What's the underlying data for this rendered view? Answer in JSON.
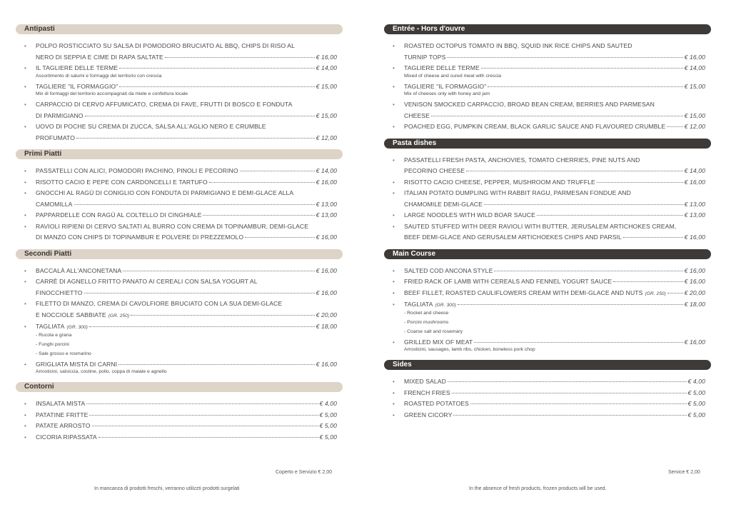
{
  "left": {
    "sections": [
      {
        "title": "Antipasti",
        "items": [
          {
            "lines": [
              "POLPO ROSTICCIATO SU SALSA DI POMODORO BRUCIATO AL BBQ, CHIPS DI RISO AL",
              "NERO DI SEPPIA E CIME DI RAPA SALTATE"
            ],
            "price": "€ 16,00"
          },
          {
            "lines": [
              "IL TAGLIERE DELLE TERME"
            ],
            "price": "€ 14,00",
            "desc": [
              "Assortimento di salumi e formaggi del territorio con crescia"
            ]
          },
          {
            "lines": [
              "TAGLIERE \"IL FORMAGGIO\""
            ],
            "price": "€ 15,00",
            "desc": [
              "Mix di formaggi del territorio accompagnati da miele e confettura locale"
            ]
          },
          {
            "lines": [
              "CARPACCIO DI CERVO AFFUMICATO, CREMA DI FAVE, FRUTTI DI BOSCO E FONDUTA",
              "DI PARMIGIANO"
            ],
            "price": "€ 15,00"
          },
          {
            "lines": [
              "UOVO DI POCHE SU CREMA DI ZUCCA, SALSA ALL'AGLIO NERO E CRUMBLE",
              "PROFUMATO"
            ],
            "price": "€ 12,00"
          }
        ]
      },
      {
        "title": "Primi Piatti",
        "items": [
          {
            "lines": [
              "PASSATELLI CON ALICI, POMODORI PACHINO, PINOLI E PECORINO"
            ],
            "price": "€ 14,00"
          },
          {
            "lines": [
              "RISOTTO CACIO E PEPE CON CARDONCELLI E TARTUFO"
            ],
            "price": "€ 16,00"
          },
          {
            "lines": [
              "GNOCCHI AL RAGÙ DI CONIGLIO CON FONDUTA DI PARMIGIANO E DEMI-GLACE ALLA",
              "CAMOMILLA"
            ],
            "price": "€ 13,00"
          },
          {
            "lines": [
              "PAPPARDELLE CON RAGÙ AL COLTELLO DI CINGHIALE"
            ],
            "price": "€ 13,00"
          },
          {
            "lines": [
              "RAVIOLI RIPIENI DI CERVO SALTATI AL BURRO CON CREMA DI TOPINAMBUR, DEMI-GLACE",
              "DI MANZO CON CHIPS DI TOPINAMBUR E POLVERE DI PREZZEMOLO"
            ],
            "price": "€ 16,00"
          }
        ]
      },
      {
        "title": "Secondi Piatti",
        "items": [
          {
            "lines": [
              "BACCALÀ ALL'ANCONETANA"
            ],
            "price": "€ 16,00"
          },
          {
            "lines": [
              "CARRÈ DI AGNELLO FRITTO PANATO AI CEREALI CON SALSA YOGURT AL",
              "FINOCCHIETTO"
            ],
            "price": "€ 16,00"
          },
          {
            "lines": [
              "FILETTO DI MANZO, CREMA DI CAVOLFIORE BRUCIATO CON LA SUA DEMI-GLACE",
              "E NOCCIOLE SABBIATE"
            ],
            "note": "(GR. 250)",
            "price": "€ 20,00"
          },
          {
            "lines": [
              "TAGLIATA"
            ],
            "note": "(GR. 300)",
            "price": "€ 18,00",
            "desc": [
              "- Rucola e grana",
              "- Funghi porcini",
              "- Sale grosso e rosmarino"
            ]
          },
          {
            "lines": [
              "GRIGLIATA MISTA DI CARNI"
            ],
            "price": "€ 16,00",
            "desc": [
              "Arrosticini, salsiccia, costine, pollo, coppa di maiale e agnello"
            ]
          }
        ]
      },
      {
        "title": "Contorni",
        "items": [
          {
            "lines": [
              "INSALATA MISTA"
            ],
            "price": "€ 4,00"
          },
          {
            "lines": [
              "PATATINE FRITTE"
            ],
            "price": "€ 5,00"
          },
          {
            "lines": [
              "PATATE ARROSTO"
            ],
            "price": "€ 5,00"
          },
          {
            "lines": [
              "CICORIA RIPASSATA"
            ],
            "price": "€ 5,00"
          }
        ]
      }
    ],
    "service": "Coperto e Servizio € 2,00",
    "notice": "In mancanza di prodotti freschi, verranno utilizzti prodotti surgelati"
  },
  "right": {
    "sections": [
      {
        "title": "Entrée - Hors d'ouvre",
        "items": [
          {
            "lines": [
              "ROASTED OCTOPUS TOMATO IN BBQ, SQUID INK RICE CHIPS AND SAUTED",
              "TURNIP TOPS"
            ],
            "price": "€ 16,00"
          },
          {
            "lines": [
              "TAGLIERE DELLE TERME"
            ],
            "price": "€ 14,00",
            "desc": [
              "Mixed of cheese and cured meat with crescia"
            ]
          },
          {
            "lines": [
              "TAGLIERE \"IL FORMAGGIO\""
            ],
            "price": "€ 15,00",
            "desc": [
              "Mix of cheeses only with honey and jam"
            ]
          },
          {
            "lines": [
              "VENISON SMOCKED CARPACCIO, BROAD BEAN CREAM, BERRIES AND PARMESAN",
              "CHEESE"
            ],
            "price": "€ 15,00"
          },
          {
            "lines": [
              "POACHED EGG, PUMPKIN CREAM, BLACK GARLIC SAUCE AND FLAVOURED CRUMBLE"
            ],
            "price": "€ 12,00"
          }
        ]
      },
      {
        "title": "Pasta dishes",
        "items": [
          {
            "lines": [
              "PASSATELLI FRESH PASTA, ANCHOVIES, TOMATO CHERRIES, PINE NUTS AND",
              "PECORINO CHEESE"
            ],
            "price": "€ 14,00"
          },
          {
            "lines": [
              "RISOTTO CACIO CHEESE, PEPPER, MUSHROOM AND TRUFFLE"
            ],
            "price": "€ 16,00"
          },
          {
            "lines": [
              "ITALIAN POTATO DUMPLING WITH RABBIT RAGU, PARMESAN FONDUE AND",
              "CHAMOMILE DEMI-GLACE"
            ],
            "price": "€ 13,00"
          },
          {
            "lines": [
              "LARGE NOODLES WITH WILD BOAR SAUCE"
            ],
            "price": "€ 13,00"
          },
          {
            "lines": [
              "SAUTED STUFFED WITH DEER RAVIOLI WITH BUTTER, JERUSALEM ARTICHOKES CREAM,",
              "BEEF DEMI-GLACE AND GERUSALEM ARTICHOEKES CHIPS AND PARSIL"
            ],
            "price": "€ 16,00"
          }
        ]
      },
      {
        "title": "Main Course",
        "items": [
          {
            "lines": [
              "SALTED COD ANCONA STYLE"
            ],
            "price": "€ 16,00"
          },
          {
            "lines": [
              "FRIED RACK OF LAMB WITH CEREALS AND FENNEL YOGURT SAUCE"
            ],
            "price": "€ 16,00"
          },
          {
            "lines": [
              "BEEF FILLET, ROASTED CAULIFLOWERS CREAM WITH DEMI-GLACE AND NUTS"
            ],
            "note": "(GR. 250)",
            "price": "€ 20,00"
          },
          {
            "lines": [
              "TAGLIATA"
            ],
            "note": "(GR. 300)",
            "price": "€ 18,00",
            "desc": [
              "- Rocket and cheese",
              "- Porcini mushrooms",
              "- Coarse salt and rosemary"
            ]
          },
          {
            "lines": [
              "GRILLED MIX OF MEAT"
            ],
            "price": "€ 16,00",
            "desc": [
              "Arrosticini, sausages, lamb ribs, chicken, boneless pork chop"
            ]
          }
        ]
      },
      {
        "title": "Sides",
        "items": [
          {
            "lines": [
              "MIXED SALAD"
            ],
            "price": "€ 4,00"
          },
          {
            "lines": [
              "FRENCH FRIES"
            ],
            "price": "€ 5,00"
          },
          {
            "lines": [
              "ROASTED POTATOES"
            ],
            "price": "€ 5,00"
          },
          {
            "lines": [
              "GREEN CICORY"
            ],
            "price": "€ 5,00"
          }
        ]
      }
    ],
    "service": "Service € 2,00",
    "notice": "In the absence of fresh products, frozen products will be used."
  }
}
